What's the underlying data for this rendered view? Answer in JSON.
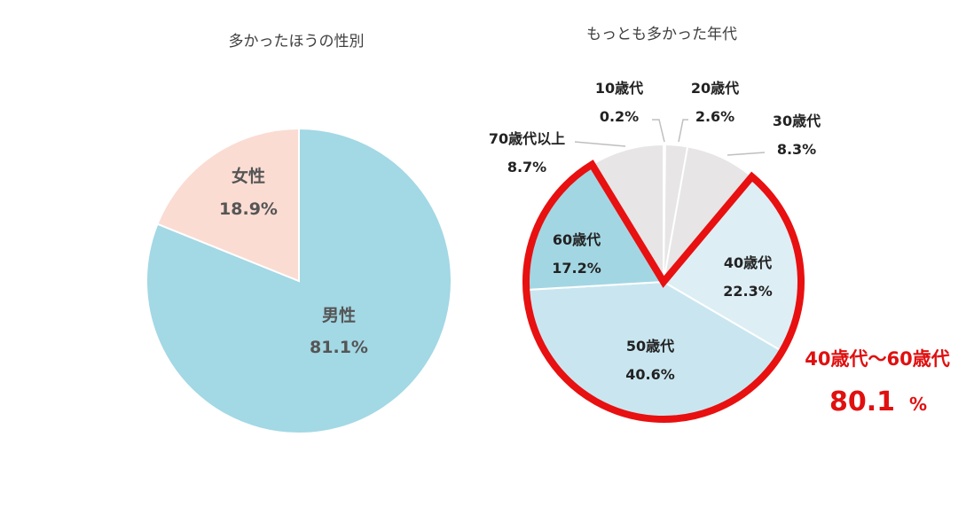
{
  "chart_data": [
    {
      "type": "pie",
      "title": "多かったほうの性別",
      "slices": [
        {
          "label": "男性",
          "value": 81.1,
          "display": "81.1%",
          "color": "#a3d8e5"
        },
        {
          "label": "女性",
          "value": 18.9,
          "display": "18.9%",
          "color": "#fadcd3"
        }
      ]
    },
    {
      "type": "pie",
      "title": "もっとも多かった年代",
      "slices": [
        {
          "label": "10歳代",
          "value": 0.2,
          "display": "0.2%",
          "color": "#e7e5e6"
        },
        {
          "label": "20歳代",
          "value": 2.6,
          "display": "2.6%",
          "color": "#e7e5e6"
        },
        {
          "label": "30歳代",
          "value": 8.3,
          "display": "8.3%",
          "color": "#e7e5e6"
        },
        {
          "label": "40歳代",
          "value": 22.3,
          "display": "22.3%",
          "color": "#ddeef5"
        },
        {
          "label": "50歳代",
          "value": 40.6,
          "display": "40.6%",
          "color": "#c9e6f0"
        },
        {
          "label": "60歳代",
          "value": 17.2,
          "display": "17.2%",
          "color": "#a3d6e3"
        },
        {
          "label": "70歳代以上",
          "value": 8.7,
          "display": "8.7%",
          "color": "#e7e5e6"
        }
      ],
      "highlight": {
        "label": "40歳代〜60歳代",
        "value": "80.1",
        "unit": "%",
        "color": "#e01010"
      }
    }
  ]
}
